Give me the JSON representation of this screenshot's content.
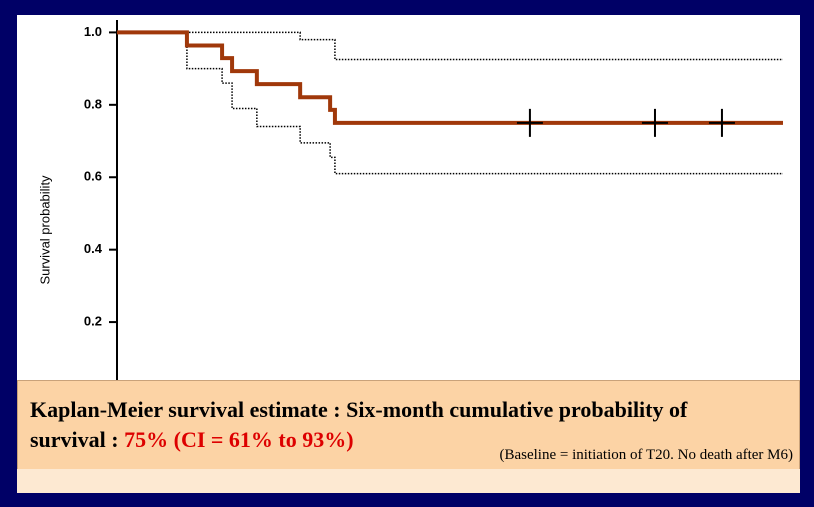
{
  "chart_data": {
    "type": "line",
    "step": true,
    "y_label": "Survival probability",
    "xlim": [
      0,
      18
    ],
    "ylim": [
      0,
      1.05
    ],
    "yticks": [
      0.2,
      0.4,
      0.6,
      0.8,
      {
        "value": 1,
        "label": "1.0"
      }
    ],
    "series": [
      {
        "color": "#a0380a",
        "dash": false,
        "x": [
          0,
          1.89,
          2.84,
          3.11,
          3.78,
          4.95,
          5.76,
          5.89,
          18
        ],
        "values": [
          1,
          0.964,
          0.929,
          0.893,
          0.857,
          0.821,
          0.786,
          0.75,
          0.75
        ]
      },
      {
        "color": "#000000",
        "dash": true,
        "x": [
          0,
          4.95,
          5.89,
          18
        ],
        "values": [
          1,
          0.98,
          0.925,
          0.925
        ]
      },
      {
        "color": "#000000",
        "dash": true,
        "x": [
          0,
          1.89,
          2.84,
          3.11,
          3.78,
          4.95,
          5.76,
          5.89,
          18
        ],
        "values": [
          1,
          0.9,
          0.86,
          0.79,
          0.74,
          0.695,
          0.655,
          0.61,
          0.61
        ]
      }
    ],
    "censored": {
      "x": [
        11.16,
        14.54,
        16.35
      ],
      "values": [
        0.75,
        0.75,
        0.75
      ]
    }
  },
  "caption": {
    "text": "Kaplan-Meier survival estimate : Six-month cumulative probability of survival : ",
    "highlight": "75% (CI = 61% to 93%)",
    "note": "(Baseline = initiation of T20. No death after M6)"
  }
}
